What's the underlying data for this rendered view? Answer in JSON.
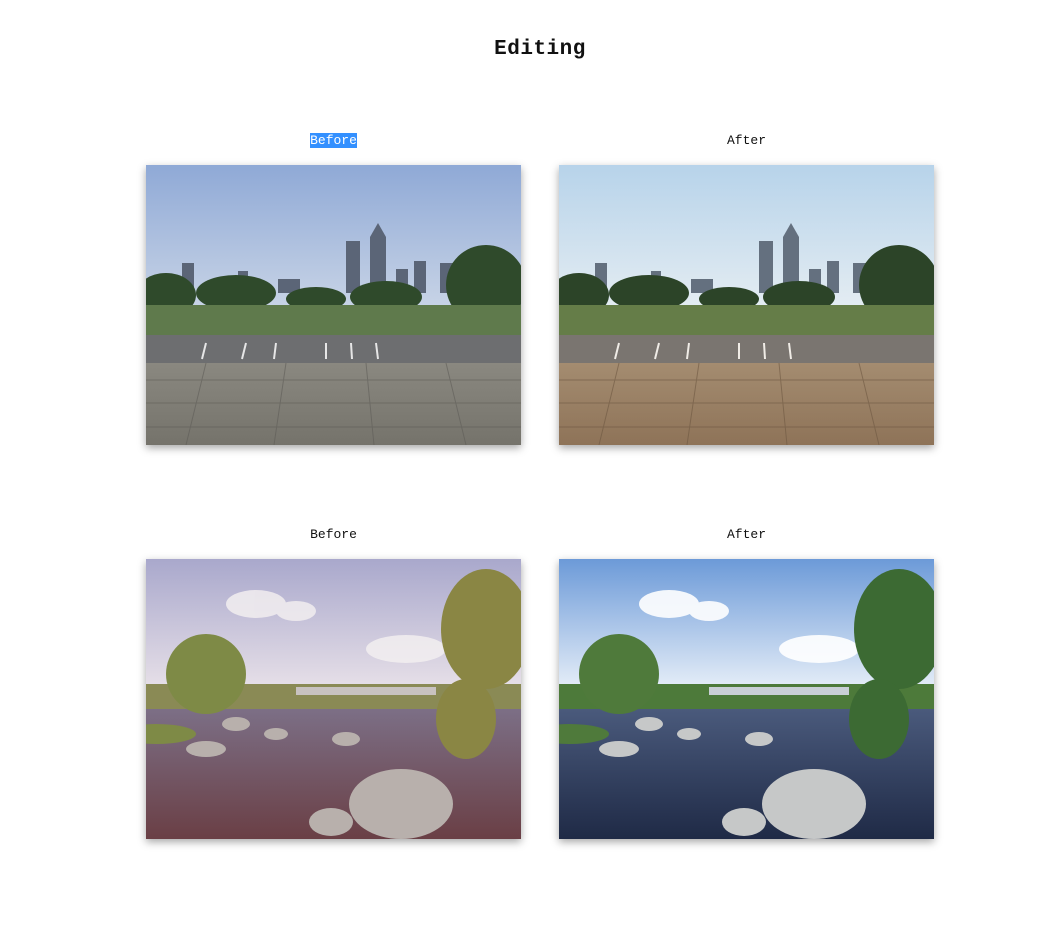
{
  "page": {
    "title": "Editing"
  },
  "pairs": [
    {
      "before_label": "Before",
      "after_label": "After",
      "subject": "city-skyline-plaza"
    },
    {
      "before_label": "Before",
      "after_label": "After",
      "subject": "river-rocks-trees"
    }
  ],
  "colors": {
    "selection": "#3390ff"
  }
}
